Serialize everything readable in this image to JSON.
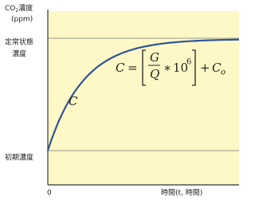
{
  "y_axis_label": {
    "text": "CO",
    "subscript": "2",
    "suffix": "濃度",
    "unit": "(ppm)"
  },
  "levels": {
    "steady_state": [
      "定常状態",
      "濃度"
    ],
    "initial": "初期濃度"
  },
  "x_axis": {
    "origin": "0",
    "label": "時間(t, 時間)"
  },
  "curve_label": "C",
  "formula": {
    "lhs": "C",
    "equals": "=",
    "numerator": "G",
    "denominator": "Q",
    "times": "∗",
    "base": "10",
    "exponent": "6",
    "plus": "+",
    "constant": "C",
    "constant_subscript": "o"
  }
}
